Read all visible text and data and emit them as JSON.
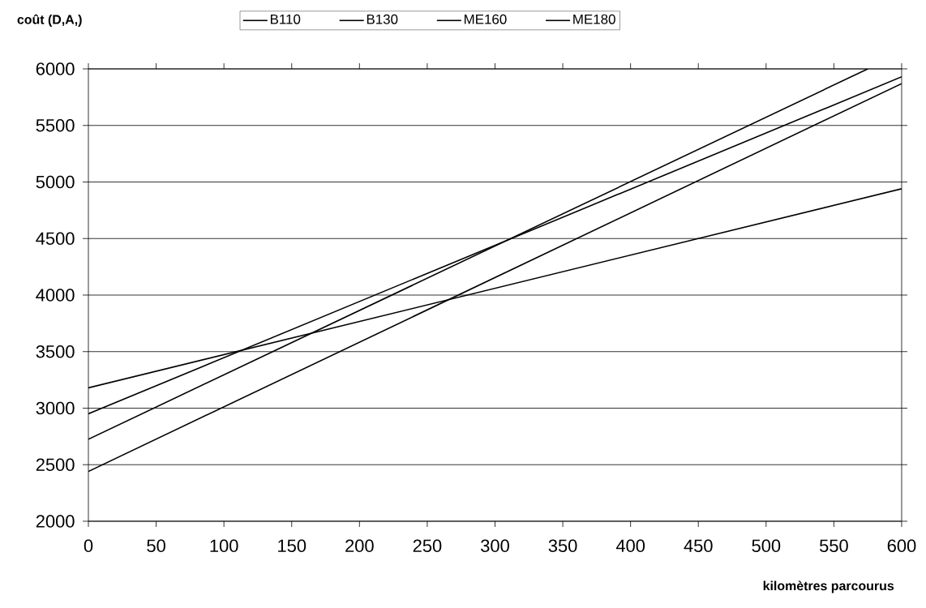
{
  "chart_data": {
    "type": "line",
    "xlabel": "kilomètres parcourus",
    "ylabel": "coût (D,A,)",
    "xlim": [
      0,
      600
    ],
    "xticks": [
      0,
      50,
      100,
      150,
      200,
      250,
      300,
      350,
      400,
      450,
      500,
      550,
      600
    ],
    "ylim": [
      2000,
      6000
    ],
    "yticks": [
      2000,
      2500,
      3000,
      3500,
      4000,
      4500,
      5000,
      5500,
      6000
    ],
    "grid": "y",
    "legend": "top",
    "marker": "none",
    "line_style": "solid",
    "series": [
      {
        "name": "B110",
        "color": "#000000",
        "x": [
          0,
          600
        ],
        "values": [
          3180,
          4940
        ]
      },
      {
        "name": "B130",
        "color": "#000000",
        "x": [
          0,
          600
        ],
        "values": [
          2950,
          5930
        ]
      },
      {
        "name": "ME160",
        "color": "#000000",
        "x": [
          0,
          575
        ],
        "values": [
          2725,
          6000
        ]
      },
      {
        "name": "ME180",
        "color": "#000000",
        "x": [
          0,
          600
        ],
        "values": [
          2440,
          5870
        ]
      }
    ]
  }
}
